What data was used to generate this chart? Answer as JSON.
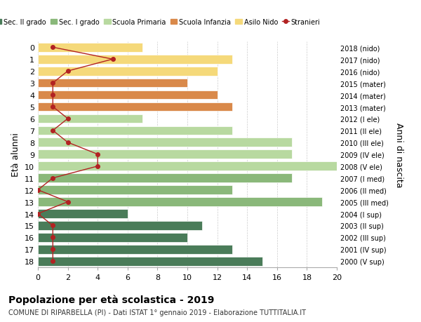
{
  "ages": [
    18,
    17,
    16,
    15,
    14,
    13,
    12,
    11,
    10,
    9,
    8,
    7,
    6,
    5,
    4,
    3,
    2,
    1,
    0
  ],
  "years": [
    "2000 (V sup)",
    "2001 (IV sup)",
    "2002 (III sup)",
    "2003 (II sup)",
    "2004 (I sup)",
    "2005 (III med)",
    "2006 (II med)",
    "2007 (I med)",
    "2008 (V ele)",
    "2009 (IV ele)",
    "2010 (III ele)",
    "2011 (II ele)",
    "2012 (I ele)",
    "2013 (mater)",
    "2014 (mater)",
    "2015 (mater)",
    "2016 (nido)",
    "2017 (nido)",
    "2018 (nido)"
  ],
  "bar_values": [
    15,
    13,
    10,
    11,
    6,
    19,
    13,
    17,
    20,
    17,
    17,
    13,
    7,
    13,
    12,
    10,
    12,
    13,
    7
  ],
  "stranieri": [
    1,
    1,
    1,
    1,
    0,
    2,
    0,
    1,
    4,
    4,
    2,
    1,
    2,
    1,
    1,
    1,
    2,
    5,
    1
  ],
  "bar_colors": [
    "#4a7c59",
    "#4a7c59",
    "#4a7c59",
    "#4a7c59",
    "#4a7c59",
    "#8ab87a",
    "#8ab87a",
    "#8ab87a",
    "#b8d9a0",
    "#b8d9a0",
    "#b8d9a0",
    "#b8d9a0",
    "#b8d9a0",
    "#d9894a",
    "#d9894a",
    "#d9894a",
    "#f5d97a",
    "#f5d97a",
    "#f5d97a"
  ],
  "legend_labels": [
    "Sec. II grado",
    "Sec. I grado",
    "Scuola Primaria",
    "Scuola Infanzia",
    "Asilo Nido",
    "Stranieri"
  ],
  "legend_colors": [
    "#4a7c59",
    "#8ab87a",
    "#b8d9a0",
    "#d9894a",
    "#f5d97a",
    "#b22222"
  ],
  "stranieri_color": "#b22222",
  "title": "Popolazione per età scolastica - 2019",
  "subtitle": "COMUNE DI RIPARBELLA (PI) - Dati ISTAT 1° gennaio 2019 - Elaborazione TUTTITALIA.IT",
  "ylabel": "Età alunni",
  "ylabel_right": "Anni di nascita",
  "xlim": [
    0,
    20
  ],
  "xticks": [
    0,
    2,
    4,
    6,
    8,
    10,
    12,
    14,
    16,
    18,
    20
  ],
  "bg_color": "#ffffff",
  "grid_color": "#cccccc"
}
